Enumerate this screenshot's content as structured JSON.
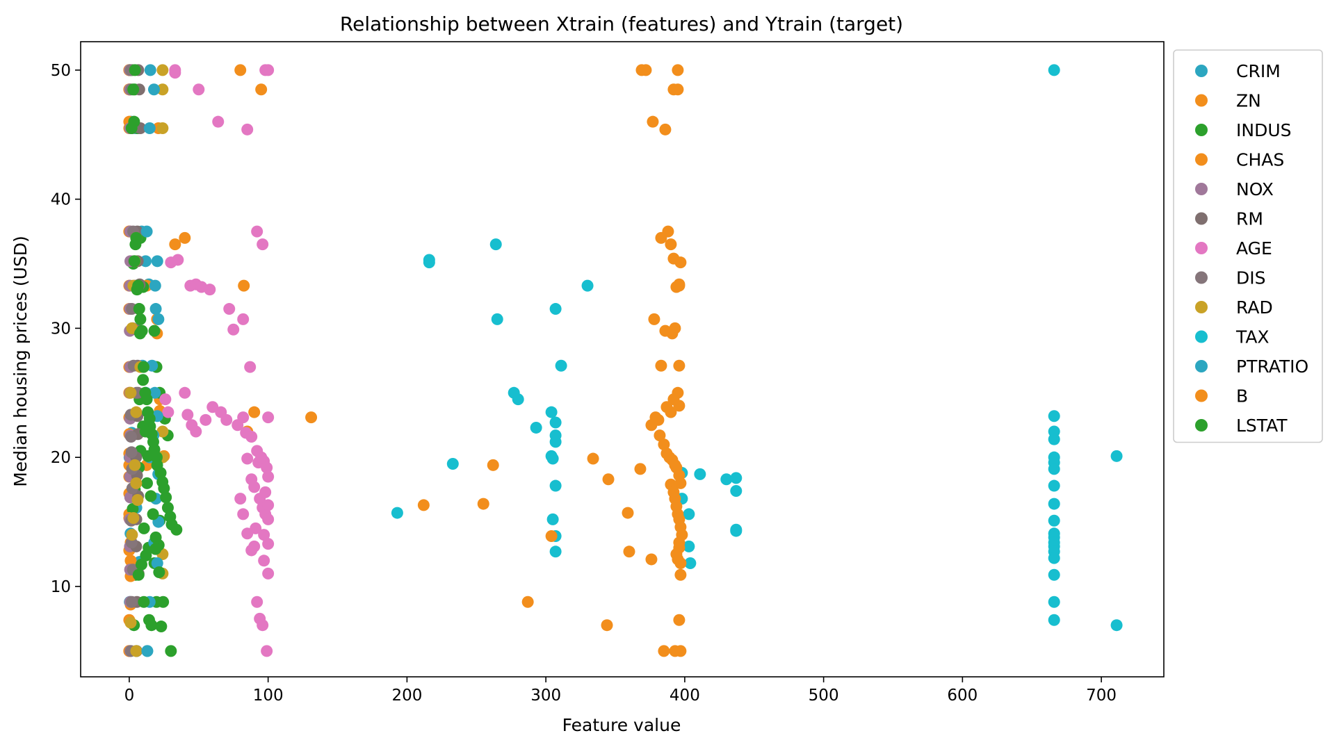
{
  "chart_data": {
    "type": "scatter",
    "title": "Relationship between Xtrain (features) and Ytrain (target)",
    "xlabel": "Feature value",
    "ylabel": "Median housing prices (USD)",
    "xlim": [
      -35,
      745
    ],
    "ylim": [
      3,
      52.2
    ],
    "x_ticks": [
      0,
      100,
      200,
      300,
      400,
      500,
      600,
      700
    ],
    "y_ticks": [
      10,
      20,
      30,
      40,
      50
    ],
    "x_tick_labels": [
      "0",
      "100",
      "200",
      "300",
      "400",
      "500",
      "600",
      "700"
    ],
    "y_tick_labels": [
      "10",
      "20",
      "30",
      "40",
      "50"
    ],
    "grid": false,
    "legend_placement": "outside-top-right",
    "series": [
      {
        "name": "CRIM",
        "color": "#2ca6c0",
        "x": [
          0.1,
          0.3,
          1.2,
          4.5,
          8.9,
          11.8,
          14.1,
          0.6,
          2.3,
          9.5,
          12.0,
          15.3,
          1.8,
          0.2,
          3.7,
          5.1,
          0.9,
          7.4,
          0.4,
          13.0
        ],
        "y": [
          50,
          48.5,
          46,
          45.5,
          37.5,
          35.2,
          33.4,
          31.5,
          30,
          27.1,
          25,
          23.2,
          21.9,
          20,
          18.4,
          16.1,
          14.1,
          11.9,
          8.8,
          5
        ]
      },
      {
        "name": "ZN",
        "color": "#f28e1c",
        "x": [
          0,
          0,
          0,
          0,
          12.5,
          20,
          22,
          80,
          82.5,
          95,
          90,
          85,
          25,
          0,
          0,
          33,
          21,
          20,
          22,
          12.5,
          0,
          0,
          0,
          40
        ],
        "y": [
          50,
          48.5,
          46,
          37.5,
          33.3,
          30.7,
          24.5,
          50,
          33.3,
          48.5,
          23.5,
          22,
          20.1,
          18.5,
          15.6,
          36.5,
          45.5,
          29.6,
          23.6,
          19.4,
          12.8,
          7.4,
          5,
          37
        ]
      },
      {
        "name": "INDUS",
        "color": "#2ca02c",
        "x": [
          2.0,
          3.9,
          6.2,
          8.1,
          10.0,
          18.1,
          19.6,
          21.9,
          25.7,
          27.7,
          8.1,
          6.9,
          4.0,
          2.5,
          10.6,
          13.9,
          18.1,
          19.6,
          3.4,
          5.2,
          9.9,
          12.8,
          7.4,
          21.9,
          2.9,
          4.5
        ],
        "y": [
          50,
          48.5,
          45.5,
          37,
          33.2,
          29.8,
          27,
          25,
          23,
          21.7,
          20.5,
          19.2,
          17.5,
          16,
          14.5,
          13,
          11.8,
          8.8,
          7,
          5,
          22.4,
          18,
          24.5,
          15.1,
          35,
          10.9
        ]
      },
      {
        "name": "CHAS",
        "color": "#f28e1c",
        "x": [
          0,
          0,
          0,
          0,
          0,
          0,
          0,
          0,
          0,
          0,
          0,
          0,
          0,
          0,
          1,
          1,
          1,
          1,
          1,
          0
        ],
        "y": [
          50,
          48.5,
          45.5,
          37.5,
          33.3,
          31.5,
          27,
          25,
          23.1,
          21.8,
          20.3,
          19.4,
          17.2,
          15.3,
          13.4,
          12,
          10.8,
          8.6,
          7.2,
          5
        ]
      },
      {
        "name": "NOX",
        "color": "#a0789a",
        "x": [
          0.4,
          0.5,
          0.6,
          0.7,
          0.8,
          0.5,
          0.6,
          0.4,
          0.7,
          0.5,
          0.6,
          0.8,
          0.5,
          0.6,
          0.7,
          0.4,
          0.5,
          0.6,
          0.7,
          0.8
        ],
        "y": [
          50,
          48.5,
          45.5,
          37.5,
          35.2,
          33.3,
          31.5,
          29.8,
          27,
          25,
          23,
          21.7,
          20,
          18.5,
          16.9,
          15.2,
          13.1,
          11.3,
          8.8,
          5
        ]
      },
      {
        "name": "RM",
        "color": "#7f6f6f",
        "x": [
          6.5,
          7.2,
          8.0,
          5.8,
          6.1,
          7.5,
          6.9,
          5.4,
          6.0,
          6.3,
          5.9,
          6.2,
          4.9,
          5.6,
          6.4,
          5.1,
          5.0,
          6.7,
          5.5,
          5.3
        ],
        "y": [
          50,
          48.5,
          45.5,
          37.5,
          35.2,
          33.4,
          31.5,
          29.9,
          27.1,
          25,
          23.2,
          21.8,
          20,
          18.6,
          17,
          15.2,
          13.1,
          11,
          8.8,
          5
        ]
      },
      {
        "name": "AGE",
        "color": "#e377c2",
        "x": [
          33,
          50,
          64,
          85,
          92,
          96,
          98,
          100,
          30,
          35,
          44,
          48,
          52,
          58,
          72,
          75,
          82,
          87,
          26,
          28,
          40,
          42,
          45,
          48,
          55,
          60,
          66,
          70,
          78,
          82,
          84,
          88,
          92,
          95,
          97,
          99,
          100,
          85,
          88,
          90,
          94,
          96,
          98,
          100,
          91,
          97,
          100,
          33,
          88,
          97,
          100,
          92,
          94,
          96,
          99,
          100,
          80,
          82,
          85,
          90,
          93,
          95,
          98,
          100
        ],
        "y": [
          50,
          48.5,
          46,
          45.4,
          37.5,
          36.5,
          50,
          50,
          35.1,
          35.3,
          33.3,
          33.4,
          33.2,
          33.0,
          31.5,
          29.9,
          30.7,
          27,
          24.5,
          23.5,
          25.0,
          23.3,
          22.5,
          22.0,
          22.9,
          23.9,
          23.5,
          22.9,
          22.5,
          23.1,
          21.9,
          21.6,
          20.5,
          20.0,
          19.7,
          19.2,
          18.5,
          19.9,
          18.3,
          17.7,
          16.8,
          16.1,
          15.6,
          15.2,
          14.5,
          14.0,
          13.3,
          49.8,
          12.8,
          12.0,
          11.0,
          8.8,
          7.5,
          7.0,
          5.0,
          23.1,
          16.8,
          15.6,
          14.1,
          13.1,
          19.6,
          20.0,
          17.3,
          16.3
        ]
      },
      {
        "name": "DIS",
        "color": "#85757a",
        "x": [
          1.2,
          1.5,
          2.1,
          2.8,
          3.4,
          4.1,
          1.9,
          2.5,
          3.1,
          5.2,
          1.1,
          1.3,
          1.6,
          2.0,
          2.2,
          1.4,
          1.7,
          2.6,
          1.8,
          1.2
        ],
        "y": [
          50,
          48.5,
          45.5,
          37.5,
          35.2,
          33.3,
          31.5,
          30,
          27.1,
          25,
          23.3,
          21.6,
          20.4,
          19.1,
          17.6,
          15.1,
          13.4,
          11.3,
          8.8,
          5
        ]
      },
      {
        "name": "RAD",
        "color": "#c9a227",
        "x": [
          24,
          24,
          24,
          5,
          4,
          3,
          2,
          8,
          1,
          5,
          24,
          24,
          4,
          5,
          6,
          3,
          2,
          24,
          24,
          1,
          5
        ],
        "y": [
          50,
          48.5,
          45.5,
          37,
          35.2,
          33.3,
          30,
          27,
          25,
          23.5,
          22,
          20,
          19.4,
          18,
          16.7,
          15.3,
          14,
          12.5,
          11,
          7.2,
          5
        ]
      },
      {
        "name": "TAX",
        "color": "#17becf",
        "x": [
          666,
          666,
          666,
          666,
          666,
          666,
          666,
          666,
          666,
          666,
          666,
          666,
          666,
          666,
          666,
          666,
          666,
          666,
          666,
          711,
          711,
          304,
          307,
          307,
          307,
          304,
          305,
          307,
          305,
          307,
          307,
          193,
          216,
          216,
          233,
          264,
          265,
          277,
          280,
          293,
          307,
          311,
          330,
          398,
          398,
          403,
          403,
          404,
          411,
          430,
          437,
          437,
          437,
          437
        ],
        "y": [
          50,
          23.2,
          22.0,
          21.4,
          20.0,
          19.6,
          19.1,
          17.8,
          16.4,
          15.1,
          14.1,
          13.8,
          13.4,
          13.1,
          12.7,
          12.2,
          10.9,
          8.8,
          7.4,
          20.1,
          7.0,
          23.5,
          22.7,
          21.7,
          21.2,
          20.1,
          19.9,
          17.8,
          15.2,
          13.9,
          12.7,
          15.7,
          35.3,
          35.1,
          19.5,
          36.5,
          30.7,
          25.0,
          24.5,
          22.3,
          31.5,
          27.1,
          33.3,
          18.8,
          16.8,
          15.6,
          13.1,
          11.8,
          18.7,
          18.3,
          18.4,
          17.4,
          14.4,
          14.3
        ]
      },
      {
        "name": "PTRATIO",
        "color": "#2ca6c0",
        "x": [
          15.2,
          17.8,
          14.7,
          12.6,
          20.2,
          18.7,
          19.1,
          21.0,
          16.4,
          18.4,
          20.2,
          17.4,
          14.8,
          20.9,
          19.2,
          21.0,
          18.0,
          20.2,
          14.7,
          13.0
        ],
        "y": [
          50,
          48.5,
          45.5,
          37.5,
          35.2,
          33.3,
          31.5,
          30.7,
          27.1,
          25.0,
          23.2,
          21.7,
          20.0,
          18.7,
          16.8,
          15.0,
          13.4,
          11.8,
          8.8,
          5
        ]
      },
      {
        "name": "B",
        "color": "#f28e1c",
        "x": [
          369,
          372,
          395,
          395,
          392,
          377,
          386,
          383,
          388,
          390,
          392,
          394,
          396,
          378,
          386,
          391,
          393,
          396,
          397,
          383,
          387,
          390,
          392,
          395,
          396,
          376,
          379,
          381,
          382,
          385,
          387,
          389,
          391,
          393,
          394,
          396,
          397,
          390,
          392,
          393,
          394,
          395,
          396,
          397,
          398,
          396,
          396,
          394,
          395,
          397,
          397,
          396,
          131,
          212,
          255,
          262,
          287,
          304,
          334,
          344,
          345,
          359,
          360,
          368,
          376,
          385,
          393,
          397,
          396
        ],
        "y": [
          50,
          50,
          50,
          48.5,
          48.5,
          46.0,
          45.4,
          37.0,
          37.5,
          36.5,
          35.4,
          33.2,
          33.4,
          30.7,
          29.8,
          29.6,
          30.0,
          33.3,
          35.1,
          27.1,
          23.9,
          23.5,
          24.5,
          25.0,
          24.0,
          22.5,
          23.1,
          22.9,
          21.7,
          21.0,
          20.3,
          20.0,
          19.8,
          19.4,
          19.2,
          18.6,
          18.0,
          17.9,
          17.3,
          16.8,
          16.2,
          15.6,
          15.2,
          14.6,
          14.0,
          13.4,
          13.0,
          12.5,
          12.1,
          11.8,
          10.9,
          7.4,
          23.1,
          16.3,
          16.4,
          19.4,
          8.8,
          13.9,
          19.9,
          7.0,
          18.3,
          15.7,
          12.7,
          19.1,
          12.1,
          5.0,
          5.0,
          5.0,
          27.1
        ]
      },
      {
        "name": "LSTAT",
        "color": "#2ca02c",
        "x": [
          4.1,
          2.9,
          3.5,
          1.7,
          5.0,
          4.5,
          3.8,
          6.4,
          7.2,
          8.0,
          9.1,
          10.3,
          11.5,
          12.6,
          13.4,
          14.7,
          15.0,
          16.2,
          17.3,
          18.1,
          19.8,
          20.1,
          22.6,
          23.9,
          25.0,
          26.4,
          27.8,
          29.5,
          30.6,
          34.0,
          19.1,
          21.2,
          12.0,
          8.8,
          6.7,
          10.5,
          14.3,
          16.0,
          23.0,
          30.0,
          5.6,
          7.8,
          9.9,
          11.7,
          13.5,
          15.5,
          17.1,
          18.9,
          21.5,
          24.4
        ],
        "y": [
          50,
          48.5,
          46.0,
          45.5,
          37.0,
          36.5,
          35.2,
          33.3,
          31.5,
          30.7,
          29.8,
          27.0,
          25.0,
          24.5,
          23.5,
          23.0,
          22.4,
          21.8,
          21.2,
          20.6,
          20.0,
          19.4,
          18.8,
          18.1,
          17.6,
          16.9,
          16.1,
          15.4,
          14.8,
          14.4,
          13.8,
          13.2,
          12.4,
          11.7,
          10.9,
          8.8,
          7.4,
          7.0,
          6.9,
          5.0,
          33.0,
          29.6,
          26.0,
          22.0,
          20.1,
          17.0,
          15.6,
          12.9,
          11.1,
          8.8
        ]
      }
    ]
  }
}
